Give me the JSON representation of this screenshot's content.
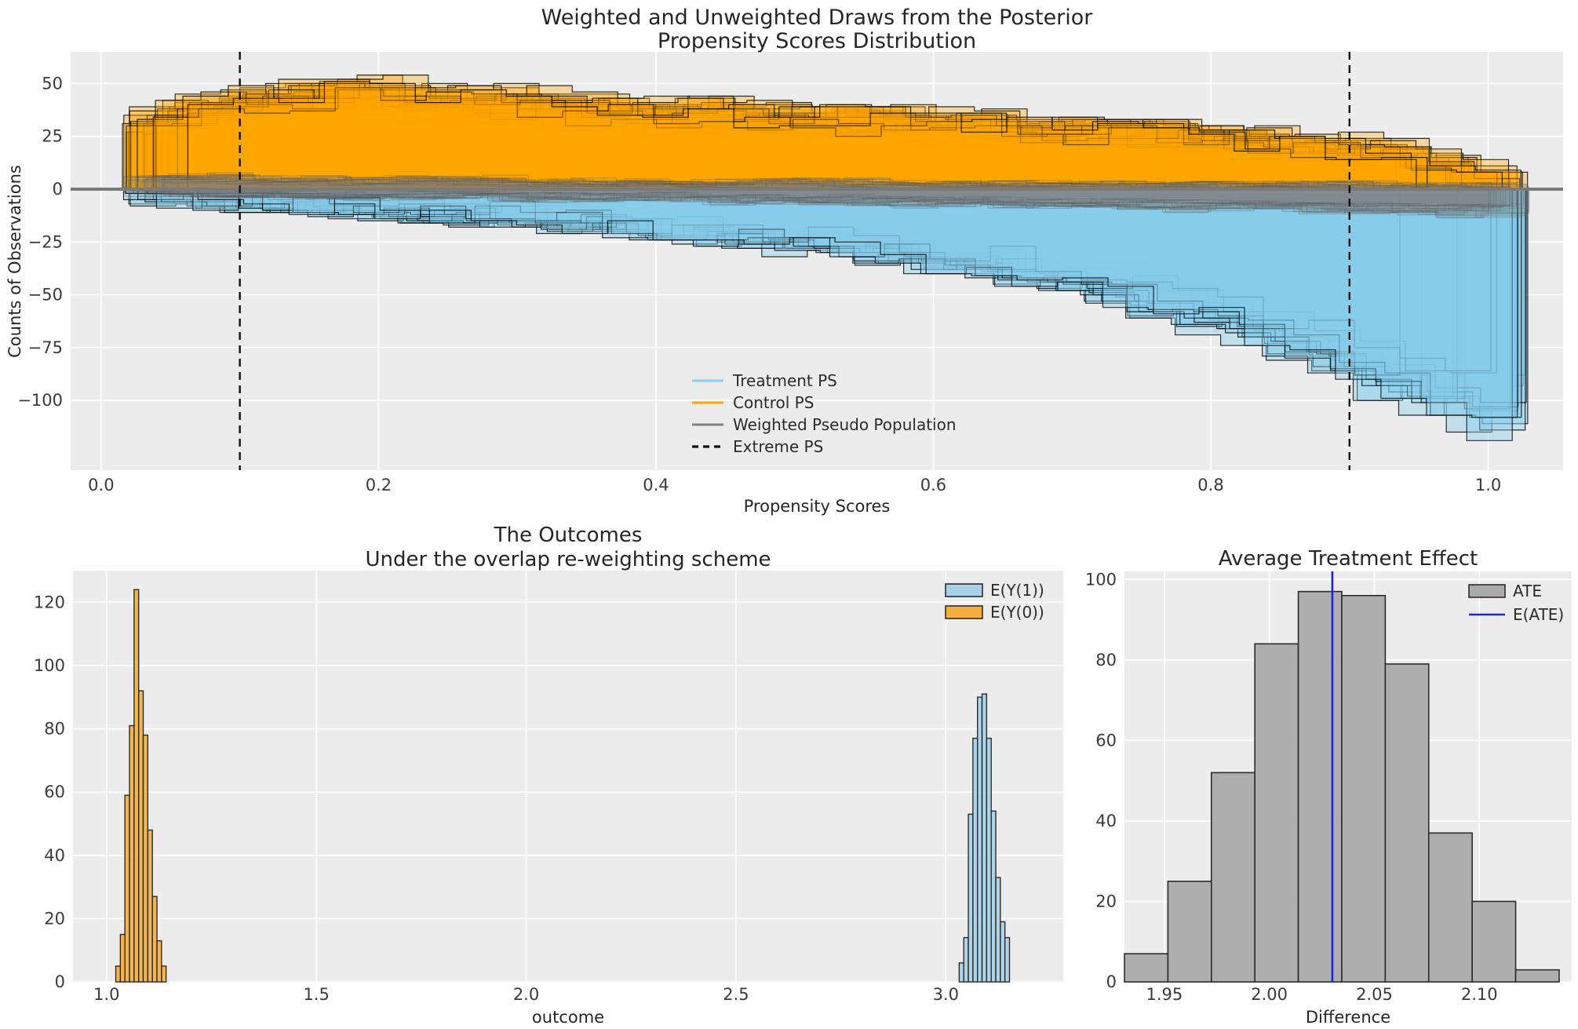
{
  "figure": {
    "background": "#ffffff",
    "axes_background": "#ececec",
    "grid_color": "#ffffff",
    "tick_color": "#3a3a3a",
    "text_color": "#262626"
  },
  "chart_data": [
    {
      "id": "propensity-draws",
      "type": "area",
      "title": "Weighted and Unweighted Draws from the Posterior",
      "subtitle": "Propensity Scores Distribution",
      "xlabel": "Propensity Scores",
      "ylabel": "Counts of Observations",
      "xlim": [
        -0.022,
        1.054
      ],
      "ylim": [
        -133,
        65
      ],
      "xtick_values": [
        0.0,
        0.2,
        0.4,
        0.6,
        0.8,
        1.0
      ],
      "xtick_labels": [
        "0.0",
        "0.2",
        "0.4",
        "0.6",
        "0.8",
        "1.0"
      ],
      "ytick_values": [
        50,
        25,
        0,
        -25,
        -50,
        -75,
        -100
      ],
      "ytick_labels": [
        "50",
        "25",
        "0",
        "−25",
        "−50",
        "−75",
        "−100"
      ],
      "grid": true,
      "extreme_ps": [
        0.1,
        0.9
      ],
      "n_draws": 30,
      "seed": 11,
      "bins": {
        "start": 0.03,
        "width": 0.0328,
        "count": 30
      },
      "control": {
        "name": "Control PS",
        "color": "#FFA500",
        "base": [
          34,
          38,
          41,
          43,
          45,
          44,
          42,
          41,
          39,
          38,
          37,
          36,
          35,
          34,
          33,
          32,
          31,
          30,
          29,
          28,
          27,
          26,
          25,
          24,
          23,
          21,
          19,
          17,
          13,
          8
        ],
        "jitter": 6
      },
      "treatment": {
        "name": "Treatment PS",
        "color": "#87CEEB",
        "base": [
          -3,
          -4,
          -5,
          -7,
          -8,
          -9,
          -11,
          -12,
          -13,
          -15,
          -16,
          -18,
          -20,
          -22,
          -24,
          -26,
          -29,
          -32,
          -35,
          -38,
          -42,
          -46,
          -51,
          -57,
          -63,
          -70,
          -78,
          -87,
          -96,
          -104
        ],
        "jitter": 6
      },
      "weighted": {
        "name": "Weighted Pseudo Population",
        "color": "#808080",
        "n_draws": 20,
        "base_top": [
          5,
          5,
          5,
          4,
          4,
          4,
          4,
          4,
          3,
          3,
          3,
          3,
          3,
          3,
          3,
          3,
          2,
          2,
          2,
          2,
          2,
          2,
          2,
          2,
          2,
          2,
          2,
          2,
          1,
          1
        ],
        "base_bottom": [
          -2,
          -2,
          -2,
          -3,
          -3,
          -3,
          -3,
          -3,
          -4,
          -4,
          -4,
          -4,
          -5,
          -5,
          -5,
          -5,
          -6,
          -6,
          -6,
          -7,
          -7,
          -7,
          -8,
          -8,
          -8,
          -9,
          -9,
          -10,
          -10,
          -10
        ],
        "jitter": 2
      },
      "zero_line": {
        "y": 0,
        "color": "#7a7a7a"
      },
      "legend": [
        {
          "label": "Treatment PS",
          "swatch": "line",
          "color": "#87CEEB"
        },
        {
          "label": "Control PS",
          "swatch": "line",
          "color": "#FFA500"
        },
        {
          "label": "Weighted Pseudo Population",
          "swatch": "line",
          "color": "#808080"
        },
        {
          "label": "Extreme PS",
          "swatch": "dashed-line",
          "color": "#111111"
        }
      ]
    },
    {
      "id": "outcomes",
      "type": "bar",
      "title": "The Outcomes",
      "subtitle": "Under the overlap re-weighting scheme",
      "xlabel": "outcome",
      "xlim": [
        0.92,
        3.28
      ],
      "ylim": [
        0,
        130
      ],
      "xtick_values": [
        1.0,
        1.5,
        2.0,
        2.5,
        3.0
      ],
      "xtick_labels": [
        "1.0",
        "1.5",
        "2.0",
        "2.5",
        "3.0"
      ],
      "ytick_values": [
        0,
        20,
        40,
        60,
        80,
        100,
        120
      ],
      "ytick_labels": [
        "0",
        "20",
        "40",
        "60",
        "80",
        "100",
        "120"
      ],
      "grid": true,
      "series": [
        {
          "name": "E(Y(0))",
          "color": "#F5AE3D",
          "edge": "#2b2b2b",
          "bin_start": 1.022,
          "bin_width": 0.0109,
          "values": [
            5,
            15,
            59,
            81,
            124,
            92,
            78,
            48,
            27,
            13,
            5
          ]
        },
        {
          "name": "E(Y(1))",
          "color": "#A9D1E8",
          "edge": "#2b2b2b",
          "bin_start": 3.032,
          "bin_width": 0.0109,
          "values": [
            6,
            14,
            53,
            77,
            90,
            91,
            77,
            54,
            33,
            19,
            14
          ]
        }
      ],
      "legend": [
        {
          "label": "E(Y(1))",
          "swatch": "patch",
          "color": "#A9D1E8"
        },
        {
          "label": "E(Y(0))",
          "swatch": "patch",
          "color": "#F5AE3D"
        }
      ]
    },
    {
      "id": "ate",
      "type": "bar",
      "title": "Average Treatment Effect",
      "xlabel": "Difference",
      "xlim": [
        1.931,
        2.144
      ],
      "ylim": [
        0,
        102
      ],
      "xtick_values": [
        1.95,
        2.0,
        2.05,
        2.1
      ],
      "xtick_labels": [
        "1.95",
        "2.00",
        "2.05",
        "2.10"
      ],
      "ytick_values": [
        0,
        20,
        40,
        60,
        80,
        100
      ],
      "ytick_labels": [
        "0",
        "20",
        "40",
        "60",
        "80",
        "100"
      ],
      "grid": true,
      "series": [
        {
          "name": "ATE",
          "color": "#ABABAB",
          "edge": "#2b2b2b",
          "bin_start": 1.931,
          "bin_width": 0.0207,
          "values": [
            7,
            25,
            52,
            84,
            97,
            96,
            79,
            37,
            20,
            3
          ]
        }
      ],
      "e_ate": {
        "label": "E(ATE)",
        "value": 2.03,
        "color": "#2222DD"
      },
      "legend": [
        {
          "label": "ATE",
          "swatch": "patch",
          "color": "#ABABAB"
        },
        {
          "label": "E(ATE)",
          "swatch": "line",
          "color": "#2222DD"
        }
      ]
    }
  ]
}
